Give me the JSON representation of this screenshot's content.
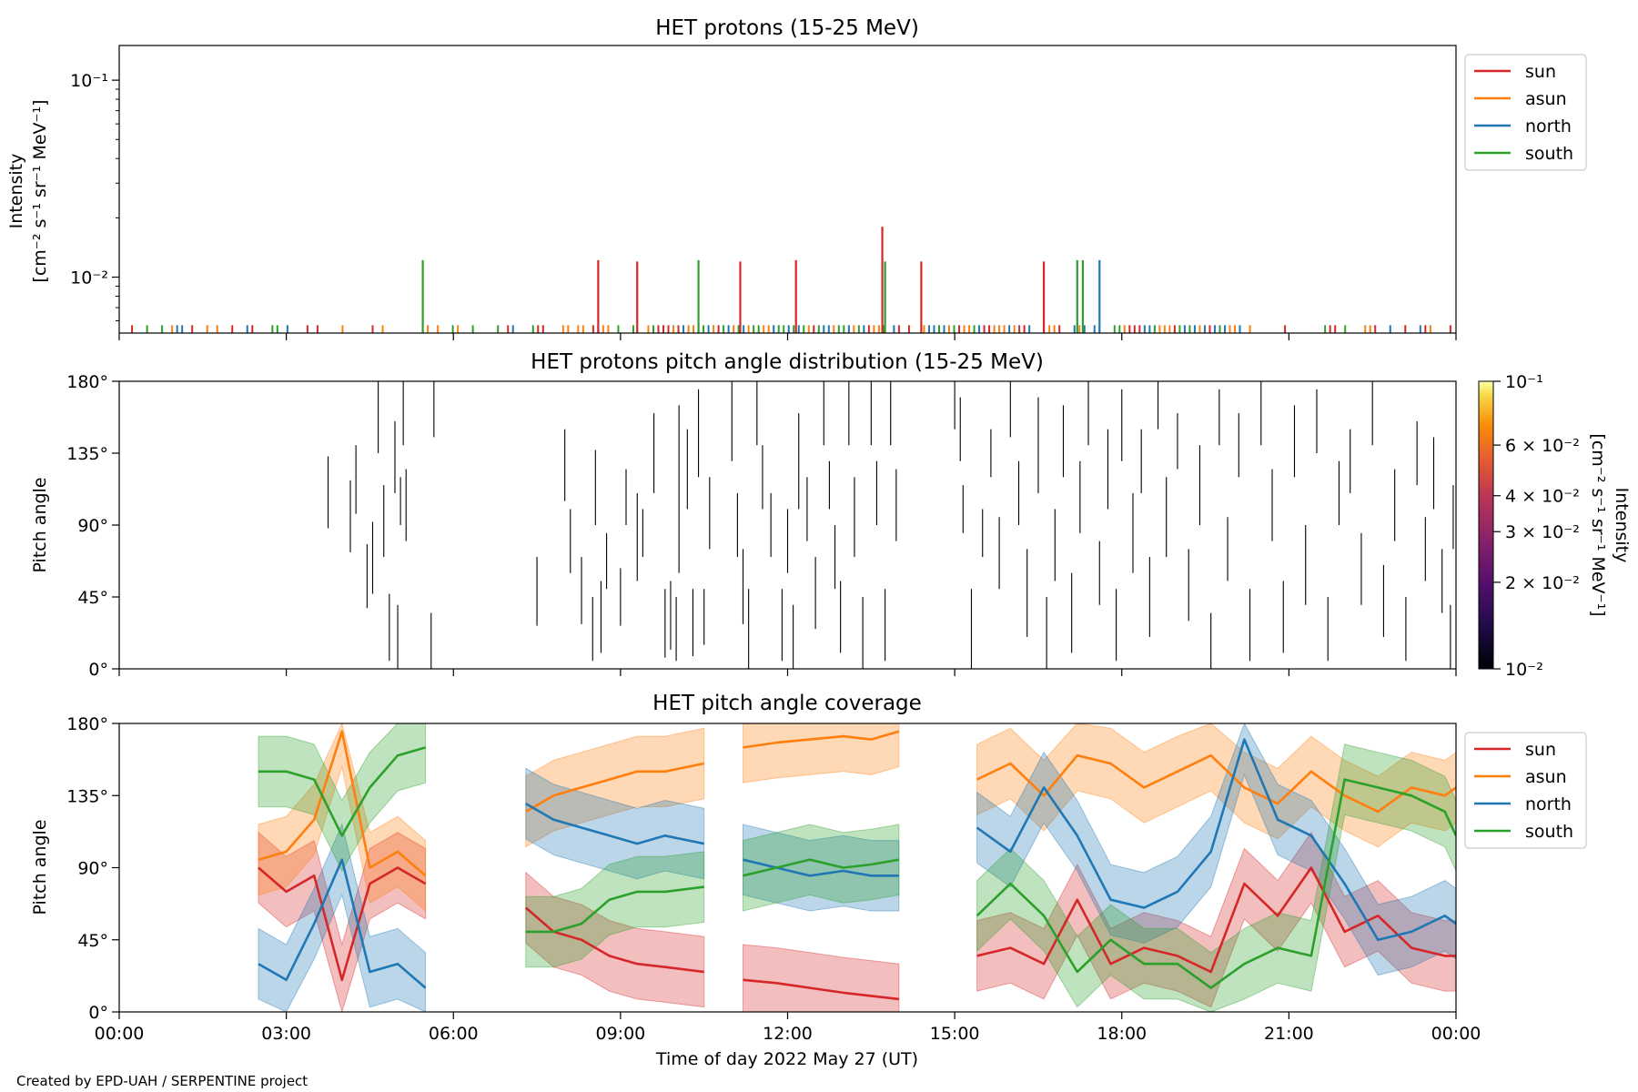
{
  "credit": "Created by EPD-UAH / SERPENTINE project",
  "xlabel": "Time of day 2022 May 27 (UT)",
  "x_ticks": [
    "00:00",
    "03:00",
    "06:00",
    "09:00",
    "12:00",
    "15:00",
    "18:00",
    "21:00",
    "00:00"
  ],
  "x_range_hours": [
    0,
    24
  ],
  "colors": {
    "sun": "#d62728",
    "asun": "#ff7f0e",
    "north": "#1f77b4",
    "south": "#2ca02c",
    "pad": "#000000"
  },
  "chart_data": [
    {
      "type": "line",
      "title": "HET protons (15-25 MeV)",
      "ylabel_line1": "Intensity",
      "ylabel_line2": "[cm⁻² s⁻¹ sr⁻¹ MeV⁻¹]",
      "yscale": "log",
      "ylim": [
        0.0052,
        0.15
      ],
      "y_ticks": [
        {
          "value": 0.1,
          "label": "10⁻¹"
        },
        {
          "value": 0.01,
          "label": "10⁻²"
        }
      ],
      "legend": {
        "placement": "outside-top-right",
        "entries": [
          "sun",
          "asun",
          "north",
          "south"
        ]
      },
      "baseline": 0.0057,
      "spikes": [
        {
          "series": "south",
          "x": 5.45,
          "y": 0.0122
        },
        {
          "series": "sun",
          "x": 8.6,
          "y": 0.0122
        },
        {
          "series": "sun",
          "x": 9.3,
          "y": 0.012
        },
        {
          "series": "south",
          "x": 10.4,
          "y": 0.0122
        },
        {
          "series": "sun",
          "x": 11.15,
          "y": 0.012
        },
        {
          "series": "sun",
          "x": 12.15,
          "y": 0.0122
        },
        {
          "series": "sun",
          "x": 13.7,
          "y": 0.018
        },
        {
          "series": "south",
          "x": 13.75,
          "y": 0.012
        },
        {
          "series": "sun",
          "x": 14.4,
          "y": 0.012
        },
        {
          "series": "sun",
          "x": 16.6,
          "y": 0.012
        },
        {
          "series": "south",
          "x": 17.2,
          "y": 0.0122
        },
        {
          "series": "south",
          "x": 17.3,
          "y": 0.0122
        },
        {
          "series": "north",
          "x": 17.6,
          "y": 0.0122
        }
      ],
      "dense_intervals": [
        [
          9.6,
          13.8
        ],
        [
          14.8,
          16.4
        ],
        [
          17.8,
          20.2
        ]
      ]
    },
    {
      "type": "heatmap",
      "title": "HET protons pitch angle distribution (15-25 MeV)",
      "ylabel": "Pitch angle",
      "ylim": [
        0,
        180
      ],
      "y_ticks": [
        {
          "value": 0,
          "label": "0°"
        },
        {
          "value": 45,
          "label": "45°"
        },
        {
          "value": 90,
          "label": "90°"
        },
        {
          "value": 135,
          "label": "135°"
        },
        {
          "value": 180,
          "label": "180°"
        }
      ],
      "colorbar": {
        "label_line1": "Intensity",
        "label_line2": "[cm⁻² s⁻¹ sr⁻¹ MeV⁻¹]",
        "scale": "log",
        "range": [
          0.01,
          0.1
        ],
        "ticks": [
          {
            "value": 0.1,
            "label": "10⁻¹"
          },
          {
            "value": 0.06,
            "label": "6 × 10⁻²"
          },
          {
            "value": 0.04,
            "label": "4 × 10⁻²"
          },
          {
            "value": 0.03,
            "label": "3 × 10⁻²"
          },
          {
            "value": 0.02,
            "label": "2 × 10⁻²"
          },
          {
            "value": 0.01,
            "label": "10⁻²"
          }
        ],
        "colormap": "inferno"
      },
      "segments": [
        [
          3.75,
          88,
          133
        ],
        [
          4.15,
          73,
          118
        ],
        [
          4.25,
          97,
          140
        ],
        [
          4.45,
          38,
          78
        ],
        [
          4.55,
          47,
          92
        ],
        [
          4.65,
          135,
          180
        ],
        [
          4.75,
          70,
          115
        ],
        [
          4.85,
          5,
          47
        ],
        [
          4.95,
          110,
          155
        ],
        [
          5.0,
          0,
          40
        ],
        [
          5.05,
          90,
          120
        ],
        [
          5.1,
          140,
          180
        ],
        [
          5.15,
          80,
          125
        ],
        [
          5.6,
          0,
          35
        ],
        [
          5.65,
          145,
          180
        ],
        [
          7.5,
          27,
          70
        ],
        [
          8.0,
          105,
          150
        ],
        [
          8.1,
          60,
          100
        ],
        [
          8.3,
          28,
          70
        ],
        [
          8.5,
          5,
          45
        ],
        [
          8.55,
          90,
          137
        ],
        [
          8.65,
          10,
          55
        ],
        [
          8.75,
          50,
          85
        ],
        [
          9.0,
          27,
          63
        ],
        [
          9.1,
          90,
          125
        ],
        [
          9.3,
          55,
          110
        ],
        [
          9.4,
          70,
          100
        ],
        [
          9.6,
          110,
          160
        ],
        [
          9.8,
          7,
          50
        ],
        [
          9.9,
          12,
          55
        ],
        [
          10.0,
          5,
          45
        ],
        [
          10.05,
          60,
          165
        ],
        [
          10.2,
          100,
          150
        ],
        [
          10.3,
          8,
          50
        ],
        [
          10.4,
          120,
          175
        ],
        [
          10.5,
          15,
          50
        ],
        [
          10.6,
          75,
          120
        ],
        [
          11.0,
          130,
          180
        ],
        [
          11.1,
          70,
          110
        ],
        [
          11.2,
          28,
          75
        ],
        [
          11.3,
          0,
          50
        ],
        [
          11.45,
          140,
          180
        ],
        [
          11.55,
          100,
          140
        ],
        [
          11.7,
          70,
          110
        ],
        [
          11.9,
          5,
          50
        ],
        [
          12.0,
          60,
          100
        ],
        [
          12.1,
          0,
          40
        ],
        [
          12.2,
          100,
          160
        ],
        [
          12.35,
          80,
          120
        ],
        [
          12.5,
          25,
          70
        ],
        [
          12.65,
          140,
          180
        ],
        [
          12.75,
          100,
          130
        ],
        [
          12.85,
          50,
          90
        ],
        [
          12.95,
          10,
          55
        ],
        [
          13.1,
          140,
          180
        ],
        [
          13.2,
          70,
          120
        ],
        [
          13.35,
          0,
          45
        ],
        [
          13.5,
          140,
          180
        ],
        [
          13.6,
          90,
          130
        ],
        [
          13.75,
          5,
          50
        ],
        [
          13.85,
          140,
          180
        ],
        [
          13.95,
          80,
          125
        ],
        [
          15.0,
          150,
          180
        ],
        [
          15.1,
          130,
          170
        ],
        [
          15.15,
          85,
          115
        ],
        [
          15.3,
          0,
          50
        ],
        [
          15.5,
          70,
          100
        ],
        [
          15.65,
          120,
          150
        ],
        [
          15.8,
          50,
          95
        ],
        [
          16.0,
          145,
          180
        ],
        [
          16.15,
          90,
          130
        ],
        [
          16.3,
          20,
          75
        ],
        [
          16.5,
          110,
          170
        ],
        [
          16.65,
          0,
          45
        ],
        [
          16.8,
          55,
          100
        ],
        [
          16.95,
          120,
          165
        ],
        [
          17.1,
          10,
          60
        ],
        [
          17.25,
          85,
          130
        ],
        [
          17.4,
          140,
          180
        ],
        [
          17.6,
          40,
          80
        ],
        [
          17.75,
          100,
          150
        ],
        [
          17.9,
          5,
          50
        ],
        [
          18.0,
          130,
          175
        ],
        [
          18.2,
          60,
          110
        ],
        [
          18.35,
          110,
          150
        ],
        [
          18.5,
          20,
          70
        ],
        [
          18.65,
          150,
          180
        ],
        [
          18.8,
          70,
          120
        ],
        [
          19.0,
          125,
          160
        ],
        [
          19.2,
          30,
          75
        ],
        [
          19.4,
          90,
          140
        ],
        [
          19.6,
          0,
          35
        ],
        [
          19.75,
          140,
          175
        ],
        [
          19.9,
          55,
          95
        ],
        [
          20.1,
          120,
          160
        ],
        [
          20.3,
          5,
          50
        ],
        [
          20.5,
          140,
          180
        ],
        [
          20.7,
          80,
          125
        ],
        [
          20.9,
          10,
          55
        ],
        [
          21.1,
          120,
          165
        ],
        [
          21.3,
          40,
          90
        ],
        [
          21.5,
          135,
          175
        ],
        [
          21.7,
          5,
          45
        ],
        [
          21.9,
          90,
          130
        ],
        [
          22.1,
          110,
          150
        ],
        [
          22.3,
          40,
          85
        ],
        [
          22.5,
          140,
          180
        ],
        [
          22.7,
          20,
          65
        ],
        [
          22.9,
          80,
          125
        ],
        [
          23.1,
          5,
          45
        ],
        [
          23.3,
          115,
          155
        ],
        [
          23.45,
          55,
          95
        ],
        [
          23.6,
          100,
          145
        ],
        [
          23.75,
          35,
          75
        ],
        [
          23.9,
          0,
          40
        ],
        [
          23.95,
          75,
          115
        ]
      ]
    },
    {
      "type": "area",
      "title": "HET pitch angle coverage",
      "ylabel": "Pitch angle",
      "ylim": [
        0,
        180
      ],
      "y_ticks": [
        {
          "value": 0,
          "label": "0°"
        },
        {
          "value": 45,
          "label": "45°"
        },
        {
          "value": 90,
          "label": "90°"
        },
        {
          "value": 135,
          "label": "135°"
        },
        {
          "value": 180,
          "label": "180°"
        }
      ],
      "legend": {
        "placement": "outside-top-right",
        "entries": [
          "sun",
          "asun",
          "north",
          "south"
        ]
      },
      "band_halfwidth": 22,
      "segments": [
        {
          "x": [
            2.5,
            3.0,
            3.5,
            4.0,
            4.5,
            5.0,
            5.5
          ],
          "sun": [
            90,
            75,
            85,
            20,
            80,
            90,
            80
          ],
          "asun": [
            95,
            100,
            120,
            175,
            90,
            100,
            85
          ],
          "north": [
            30,
            20,
            55,
            95,
            25,
            30,
            15
          ],
          "south": [
            150,
            150,
            145,
            110,
            140,
            160,
            165
          ]
        },
        {
          "x": [
            7.3,
            7.8,
            8.3,
            8.8,
            9.3,
            9.8,
            10.5
          ],
          "sun": [
            65,
            50,
            45,
            35,
            30,
            28,
            25
          ],
          "asun": [
            125,
            135,
            140,
            145,
            150,
            150,
            155
          ],
          "north": [
            130,
            120,
            115,
            110,
            105,
            110,
            105
          ],
          "south": [
            50,
            50,
            55,
            70,
            75,
            75,
            78
          ]
        },
        {
          "x": [
            11.2,
            11.8,
            12.4,
            13.0,
            13.5,
            14.0
          ],
          "sun": [
            20,
            18,
            15,
            12,
            10,
            8
          ],
          "asun": [
            165,
            168,
            170,
            172,
            170,
            175
          ],
          "north": [
            95,
            90,
            85,
            88,
            85,
            85
          ],
          "south": [
            85,
            90,
            95,
            90,
            92,
            95
          ]
        },
        {
          "x": [
            15.4,
            16.0,
            16.6,
            17.2,
            17.8,
            18.4,
            19.0,
            19.6,
            20.2,
            20.8,
            21.4,
            22.0,
            22.6,
            23.2,
            23.8,
            24.0
          ],
          "sun": [
            35,
            40,
            30,
            70,
            30,
            40,
            35,
            25,
            80,
            60,
            90,
            50,
            60,
            40,
            35,
            35
          ],
          "asun": [
            145,
            155,
            135,
            160,
            155,
            140,
            150,
            160,
            140,
            130,
            150,
            135,
            125,
            140,
            135,
            140
          ],
          "north": [
            115,
            100,
            140,
            110,
            70,
            65,
            75,
            100,
            170,
            120,
            110,
            80,
            45,
            50,
            60,
            55
          ],
          "south": [
            60,
            80,
            60,
            25,
            45,
            30,
            30,
            15,
            30,
            40,
            35,
            145,
            140,
            135,
            125,
            110
          ]
        }
      ]
    }
  ]
}
